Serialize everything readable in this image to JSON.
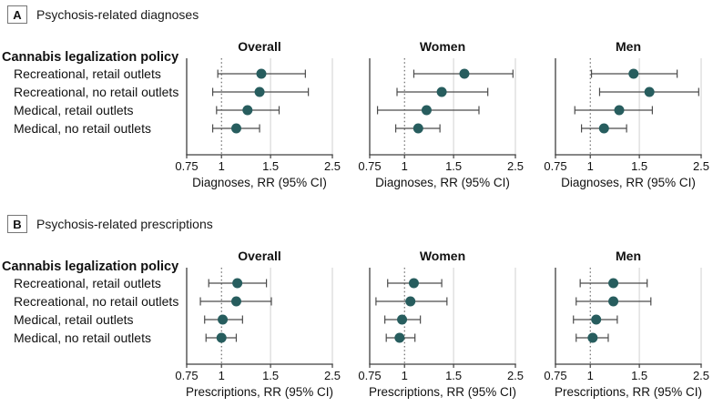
{
  "colors": {
    "marker": "#275d5e",
    "ci_line": "#4c4c4c",
    "axis": "#3f3f3f",
    "gridline": "#d9d9d9",
    "reference_line": "#4c4c4c",
    "text": "#111111"
  },
  "chart_data": [
    {
      "type": "scatter",
      "chart_kind": "forest-plot",
      "panel": "A",
      "panel_title": "Psychosis-related diagnoses",
      "ylabel_header": "Cannabis legalization policy",
      "categories": [
        "Recreational, retail outlets",
        "Recreational, no retail outlets",
        "Medical, retail outlets",
        "Medical, no retail outlets"
      ],
      "xlabel": "Diagnoses, RR (95% CI)",
      "x_scale": "log",
      "xlim": [
        0.75,
        2.5
      ],
      "x_ticks": [
        0.75,
        1,
        1.5,
        2.5
      ],
      "x_tick_labels": [
        "0.75",
        "1",
        "1.5",
        "2.5"
      ],
      "reference_line": 1,
      "gridlines": [
        1.5,
        2.5
      ],
      "grid": true,
      "legend_position": "none",
      "series": [
        {
          "name": "Overall",
          "rr": [
            1.39,
            1.37,
            1.24,
            1.13
          ],
          "ci_low": [
            0.97,
            0.93,
            0.96,
            0.93
          ],
          "ci_high": [
            2.0,
            2.05,
            1.61,
            1.37
          ]
        },
        {
          "name": "Women",
          "rr": [
            1.64,
            1.36,
            1.2,
            1.12
          ],
          "ci_low": [
            1.08,
            0.94,
            0.8,
            0.93
          ],
          "ci_high": [
            2.45,
            1.99,
            1.85,
            1.34
          ]
        },
        {
          "name": "Men",
          "rr": [
            1.43,
            1.63,
            1.27,
            1.12
          ],
          "ci_low": [
            1.01,
            1.08,
            0.88,
            0.93
          ],
          "ci_high": [
            2.05,
            2.45,
            1.67,
            1.35
          ]
        }
      ]
    },
    {
      "type": "scatter",
      "chart_kind": "forest-plot",
      "panel": "B",
      "panel_title": "Psychosis-related prescriptions",
      "ylabel_header": "Cannabis legalization policy",
      "categories": [
        "Recreational, retail outlets",
        "Recreational, no retail outlets",
        "Medical, retail outlets",
        "Medical, no retail outlets"
      ],
      "xlabel": "Prescriptions, RR (95% CI)",
      "x_scale": "log",
      "xlim": [
        0.75,
        2.5
      ],
      "x_ticks": [
        0.75,
        1,
        1.5,
        2.5
      ],
      "x_tick_labels": [
        "0.75",
        "1",
        "1.5",
        "2.5"
      ],
      "reference_line": 1,
      "gridlines": [
        1.5,
        2.5
      ],
      "grid": true,
      "legend_position": "none",
      "series": [
        {
          "name": "Overall",
          "rr": [
            1.14,
            1.13,
            1.01,
            1.0
          ],
          "ci_low": [
            0.9,
            0.84,
            0.87,
            0.88
          ],
          "ci_high": [
            1.45,
            1.51,
            1.19,
            1.13
          ]
        },
        {
          "name": "Women",
          "rr": [
            1.08,
            1.05,
            0.98,
            0.96
          ],
          "ci_low": [
            0.87,
            0.79,
            0.85,
            0.86
          ],
          "ci_high": [
            1.36,
            1.42,
            1.14,
            1.09
          ]
        },
        {
          "name": "Men",
          "rr": [
            1.21,
            1.21,
            1.05,
            1.02
          ],
          "ci_low": [
            0.92,
            0.89,
            0.87,
            0.89
          ],
          "ci_high": [
            1.6,
            1.65,
            1.25,
            1.16
          ]
        }
      ]
    }
  ]
}
